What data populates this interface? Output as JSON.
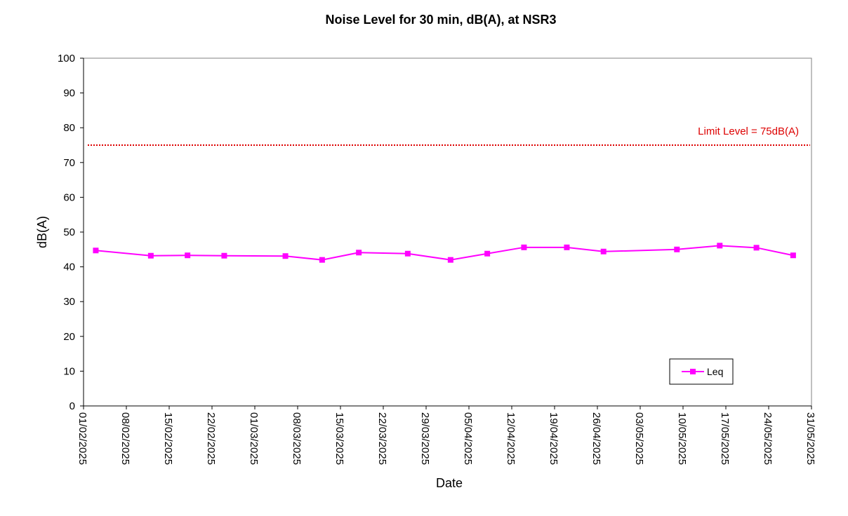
{
  "chart_data": {
    "type": "line",
    "title": "Noise Level for 30 min, dB(A), at NSR3",
    "xlabel": "Date",
    "ylabel": "dB(A)",
    "ylim": [
      0,
      100
    ],
    "xlim": [
      "01/02/2025",
      "31/05/2025"
    ],
    "x_ticks": [
      "01/02/2025",
      "08/02/2025",
      "15/02/2025",
      "22/02/2025",
      "01/03/2025",
      "08/03/2025",
      "15/03/2025",
      "22/03/2025",
      "29/03/2025",
      "05/04/2025",
      "12/04/2025",
      "19/04/2025",
      "26/04/2025",
      "03/05/2025",
      "10/05/2025",
      "17/05/2025",
      "24/05/2025",
      "31/05/2025"
    ],
    "y_ticks": [
      0,
      10,
      20,
      30,
      40,
      50,
      60,
      70,
      80,
      90,
      100
    ],
    "grid": false,
    "legend": {
      "position": "bottom-right",
      "entries": [
        "Leq"
      ]
    },
    "series": [
      {
        "name": "Leq",
        "color": "#ff00ff",
        "marker": "square",
        "x": [
          "03/02/2025",
          "12/02/2025",
          "18/02/2025",
          "24/02/2025",
          "06/03/2025",
          "12/03/2025",
          "18/03/2025",
          "26/03/2025",
          "02/04/2025",
          "08/04/2025",
          "14/04/2025",
          "21/04/2025",
          "27/04/2025",
          "09/05/2025",
          "16/05/2025",
          "22/05/2025",
          "28/05/2025"
        ],
        "values": [
          44.7,
          43.2,
          43.3,
          43.2,
          43.1,
          42.0,
          44.1,
          43.8,
          42.0,
          43.8,
          45.6,
          45.6,
          44.4,
          45.0,
          46.1,
          45.5,
          43.3
        ]
      }
    ],
    "limit_line": {
      "value": 75,
      "label": "Limit Level = 75dB(A)",
      "color": "#dd0000"
    }
  }
}
